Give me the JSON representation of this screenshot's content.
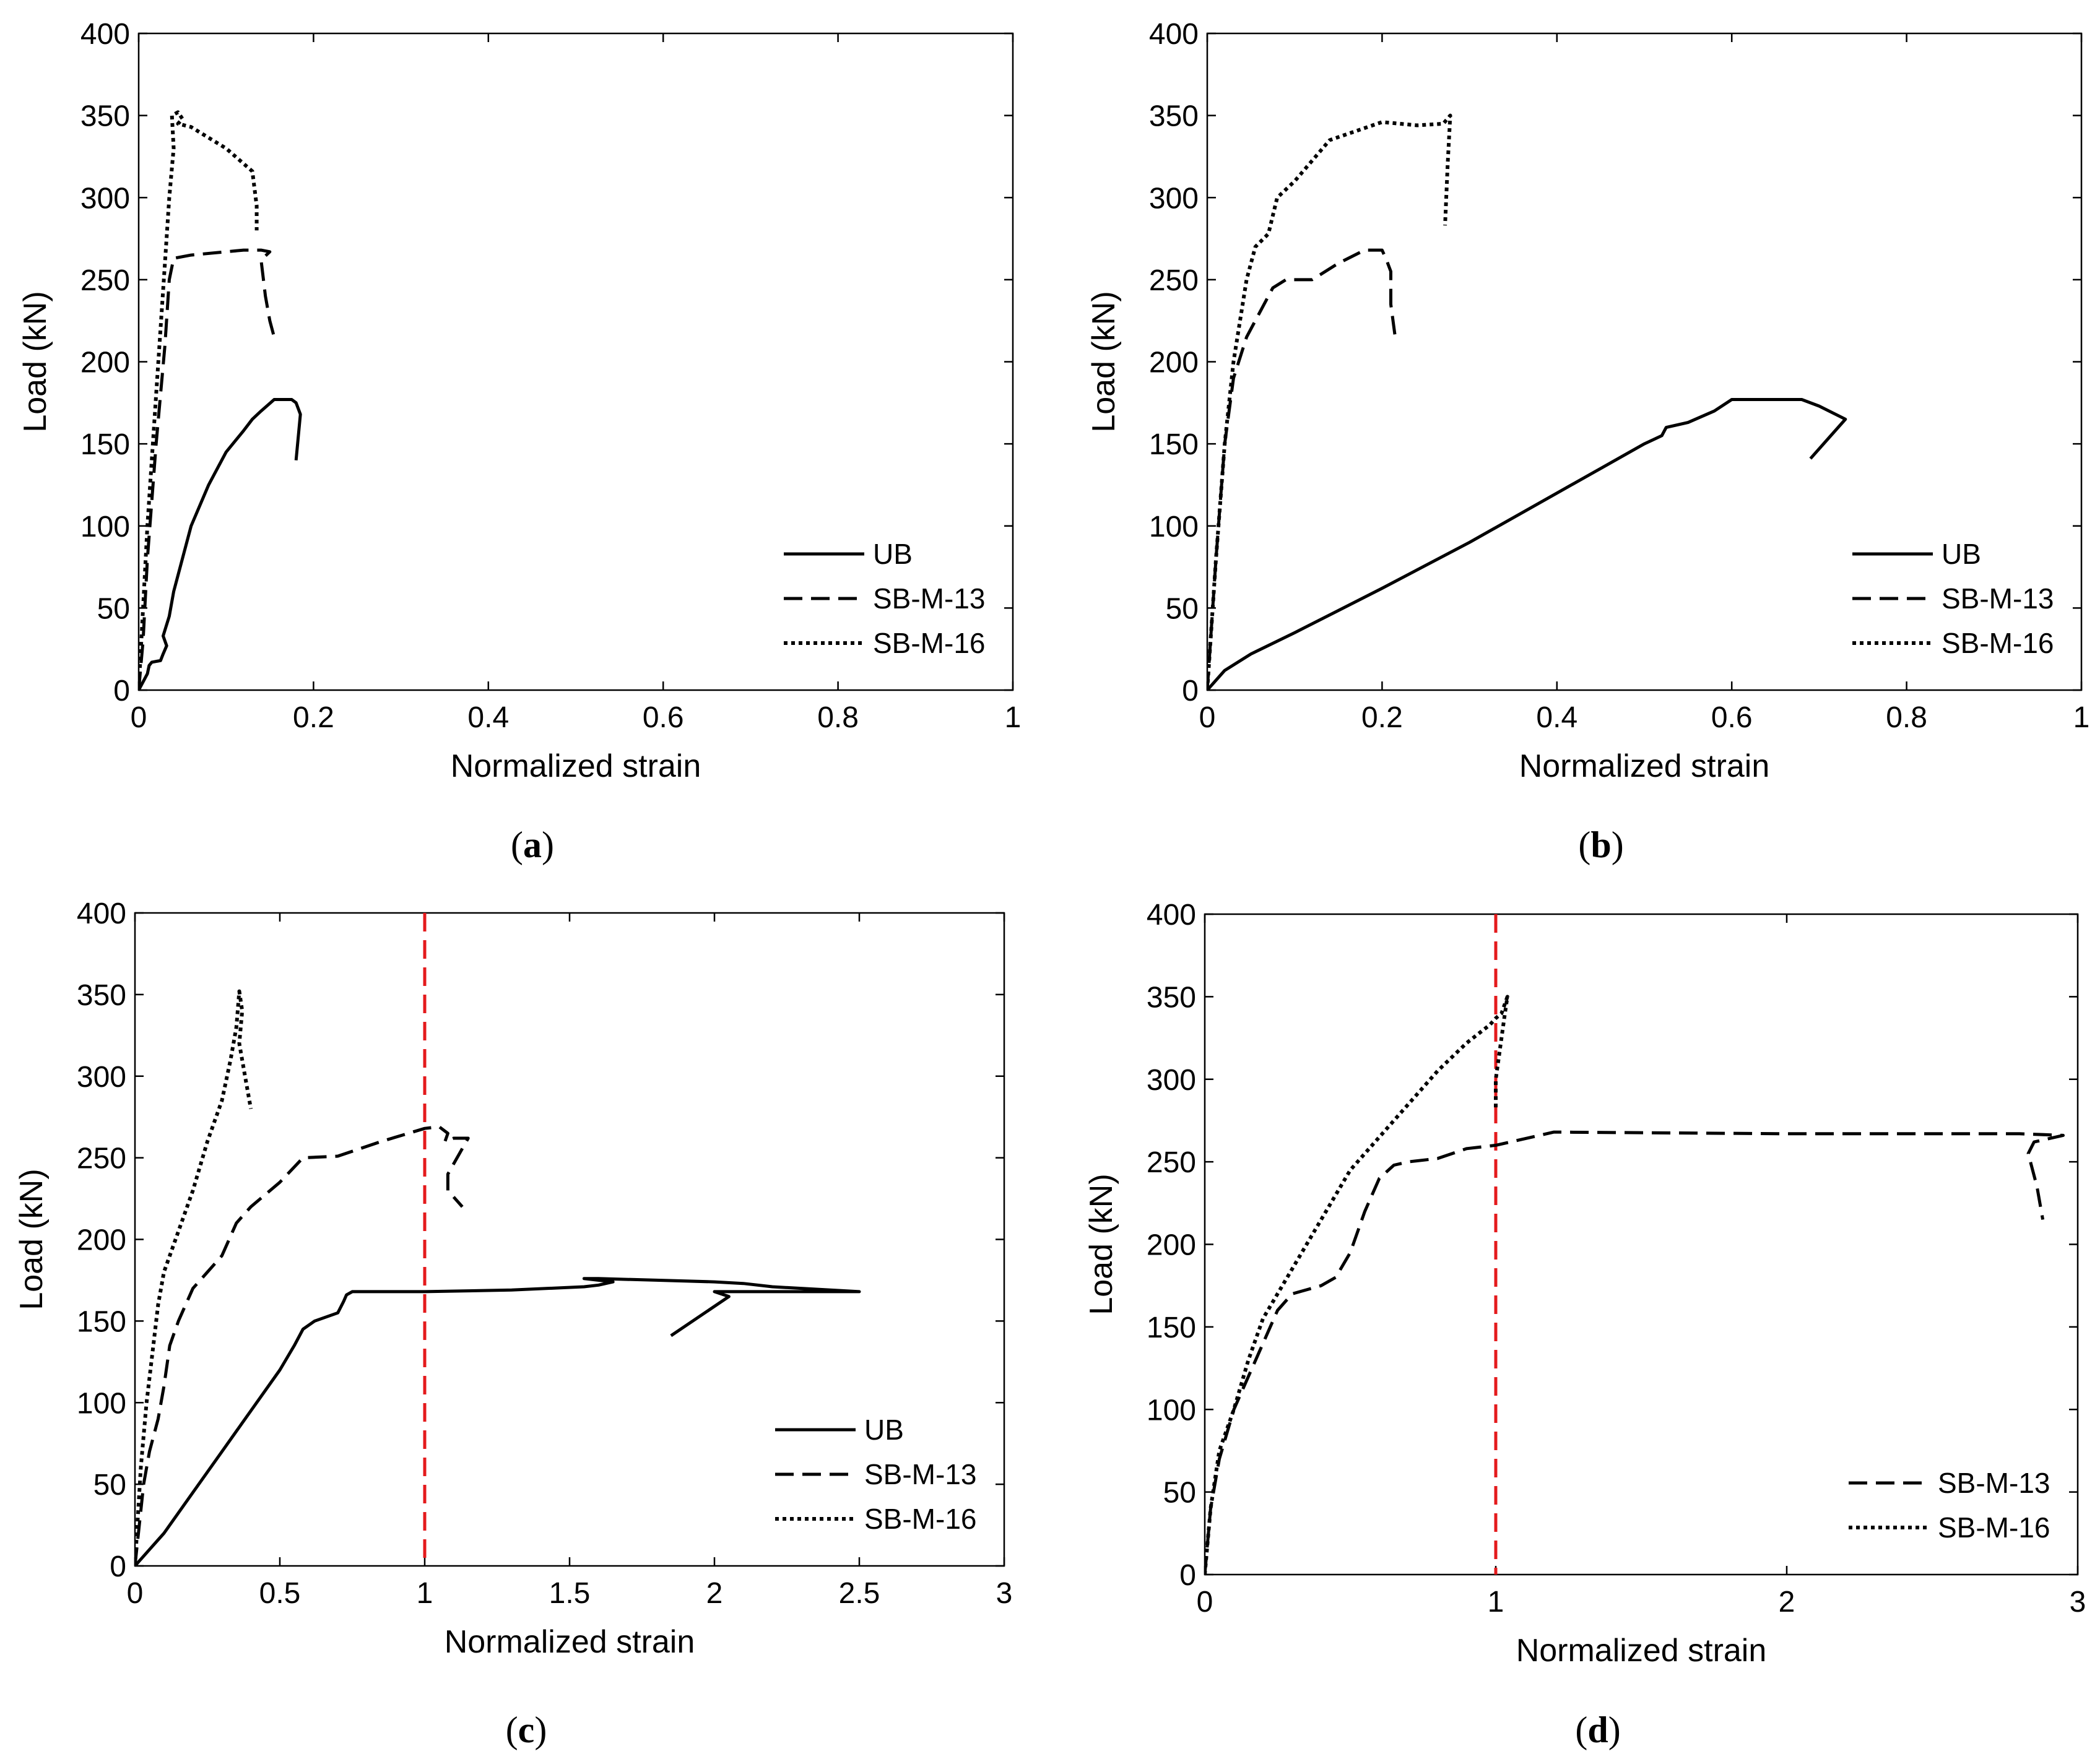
{
  "chart_data": [
    {
      "type": "line",
      "caption_letter": "a",
      "xlabel": "Normalized strain",
      "ylabel": "Load (kN)",
      "xlim": [
        0,
        1
      ],
      "ylim": [
        0,
        400
      ],
      "xticks": [
        0,
        0.2,
        0.4,
        0.6,
        0.8,
        1
      ],
      "xtick_labels": [
        "0",
        "0.2",
        "0.4",
        "0.6",
        "0.8",
        "1"
      ],
      "yticks": [
        0,
        50,
        100,
        150,
        200,
        250,
        300,
        350,
        400
      ],
      "ytick_labels": [
        "0",
        "50",
        "100",
        "150",
        "200",
        "250",
        "300",
        "350",
        "400"
      ],
      "legend_position": "lower-right",
      "reference_line_x": null,
      "series": [
        {
          "name": "UB",
          "style": "solid",
          "x": [
            0,
            0.005,
            0.01,
            0.012,
            0.015,
            0.025,
            0.028,
            0.032,
            0.028,
            0.035,
            0.04,
            0.05,
            0.06,
            0.08,
            0.1,
            0.12,
            0.13,
            0.14,
            0.155,
            0.175,
            0.18,
            0.185,
            0.18
          ],
          "y": [
            0,
            5,
            10,
            15,
            17,
            18,
            22,
            27,
            33,
            45,
            60,
            80,
            100,
            125,
            145,
            158,
            165,
            170,
            177,
            177,
            175,
            168,
            140
          ]
        },
        {
          "name": "SB-M-13",
          "style": "dashed",
          "x": [
            0,
            0.005,
            0.01,
            0.02,
            0.03,
            0.035,
            0.04,
            0.06,
            0.1,
            0.12,
            0.14,
            0.15,
            0.14,
            0.145,
            0.15,
            0.155
          ],
          "y": [
            0,
            30,
            80,
            150,
            210,
            250,
            263,
            265,
            267,
            268,
            268,
            267,
            262,
            240,
            225,
            215
          ]
        },
        {
          "name": "SB-M-16",
          "style": "dotted",
          "x": [
            0,
            0.005,
            0.01,
            0.02,
            0.03,
            0.035,
            0.04,
            0.038,
            0.045,
            0.05,
            0.045,
            0.06,
            0.1,
            0.13,
            0.135,
            0.135
          ],
          "y": [
            0,
            50,
            100,
            180,
            260,
            300,
            330,
            350,
            352,
            348,
            345,
            343,
            330,
            316,
            295,
            280
          ]
        }
      ]
    },
    {
      "type": "line",
      "caption_letter": "b",
      "xlabel": "Normalized strain",
      "ylabel": "Load (kN)",
      "xlim": [
        0,
        1
      ],
      "ylim": [
        0,
        400
      ],
      "xticks": [
        0,
        0.2,
        0.4,
        0.6,
        0.8,
        1
      ],
      "xtick_labels": [
        "0",
        "0.2",
        "0.4",
        "0.6",
        "0.8",
        "1"
      ],
      "yticks": [
        0,
        50,
        100,
        150,
        200,
        250,
        300,
        350,
        400
      ],
      "ytick_labels": [
        "0",
        "50",
        "100",
        "150",
        "200",
        "250",
        "300",
        "350",
        "400"
      ],
      "legend_position": "lower-right",
      "reference_line_x": null,
      "series": [
        {
          "name": "UB",
          "style": "solid",
          "x": [
            0,
            0.02,
            0.05,
            0.1,
            0.2,
            0.3,
            0.4,
            0.45,
            0.5,
            0.52,
            0.525,
            0.55,
            0.58,
            0.6,
            0.68,
            0.7,
            0.73,
            0.71,
            0.69
          ],
          "y": [
            0,
            12,
            22,
            35,
            62,
            90,
            120,
            135,
            150,
            155,
            160,
            163,
            170,
            177,
            177,
            173,
            165,
            153,
            141
          ]
        },
        {
          "name": "SB-M-13",
          "style": "dashed",
          "x": [
            0,
            0.01,
            0.02,
            0.03,
            0.045,
            0.06,
            0.075,
            0.09,
            0.12,
            0.15,
            0.18,
            0.2,
            0.205,
            0.21,
            0.21,
            0.215
          ],
          "y": [
            0,
            80,
            150,
            190,
            215,
            230,
            245,
            250,
            250,
            260,
            268,
            268,
            262,
            255,
            235,
            215
          ]
        },
        {
          "name": "SB-M-16",
          "style": "dotted",
          "x": [
            0,
            0.01,
            0.02,
            0.03,
            0.045,
            0.055,
            0.07,
            0.08,
            0.1,
            0.14,
            0.2,
            0.24,
            0.27,
            0.278,
            0.275,
            0.272
          ],
          "y": [
            0,
            80,
            150,
            200,
            250,
            270,
            278,
            300,
            310,
            335,
            346,
            344,
            345,
            350,
            320,
            283
          ]
        }
      ]
    },
    {
      "type": "line",
      "caption_letter": "c",
      "xlabel": "Normalized strain",
      "ylabel": "Load (kN)",
      "xlim": [
        0,
        3
      ],
      "ylim": [
        0,
        400
      ],
      "xticks": [
        0,
        0.5,
        1,
        1.5,
        2,
        2.5,
        3
      ],
      "xtick_labels": [
        "0",
        "0.5",
        "1",
        "1.5",
        "2",
        "2.5",
        "3"
      ],
      "yticks": [
        0,
        50,
        100,
        150,
        200,
        250,
        300,
        350,
        400
      ],
      "ytick_labels": [
        "0",
        "50",
        "100",
        "150",
        "200",
        "250",
        "300",
        "350",
        "400"
      ],
      "legend_position": "lower-right",
      "reference_line_x": 1,
      "series": [
        {
          "name": "UB",
          "style": "solid",
          "x": [
            0,
            0.05,
            0.1,
            0.2,
            0.3,
            0.4,
            0.5,
            0.55,
            0.58,
            0.62,
            0.7,
            0.72,
            0.73,
            0.75,
            0.8,
            1.0,
            1.3,
            1.55,
            1.6,
            1.65,
            1.55,
            1.6,
            1.8,
            2.0,
            2.1,
            2.2,
            2.5,
            2.2,
            2.0,
            2.05,
            1.85
          ],
          "y": [
            0,
            10,
            20,
            45,
            70,
            95,
            120,
            135,
            145,
            150,
            155,
            162,
            166,
            168,
            168,
            168,
            169,
            171,
            172,
            174,
            176,
            176,
            175,
            174,
            173,
            171,
            168,
            168,
            168,
            165,
            141
          ]
        },
        {
          "name": "SB-M-13",
          "style": "dashed",
          "x": [
            0,
            0.03,
            0.05,
            0.08,
            0.1,
            0.12,
            0.15,
            0.2,
            0.25,
            0.3,
            0.35,
            0.4,
            0.5,
            0.58,
            0.7,
            0.85,
            1.0,
            1.05,
            1.08,
            1.07,
            1.1,
            1.15,
            1.08,
            1.08,
            1.13
          ],
          "y": [
            0,
            50,
            70,
            90,
            110,
            135,
            150,
            170,
            180,
            190,
            210,
            220,
            235,
            250,
            251,
            260,
            268,
            269,
            265,
            260,
            262,
            262,
            240,
            230,
            220
          ]
        },
        {
          "name": "SB-M-16",
          "style": "dotted",
          "x": [
            0,
            0.02,
            0.04,
            0.06,
            0.08,
            0.1,
            0.15,
            0.2,
            0.25,
            0.3,
            0.33,
            0.35,
            0.36,
            0.37,
            0.36,
            0.38,
            0.4
          ],
          "y": [
            0,
            60,
            100,
            130,
            160,
            180,
            205,
            230,
            260,
            285,
            310,
            330,
            352,
            340,
            320,
            300,
            280
          ]
        }
      ]
    },
    {
      "type": "line",
      "caption_letter": "d",
      "xlabel": "Normalized strain",
      "ylabel": "Load (kN)",
      "xlim": [
        0,
        3
      ],
      "ylim": [
        0,
        400
      ],
      "xticks": [
        0,
        1,
        2,
        3
      ],
      "xtick_labels": [
        "0",
        "1",
        "2",
        "3"
      ],
      "yticks": [
        0,
        50,
        100,
        150,
        200,
        250,
        300,
        350,
        400
      ],
      "ytick_labels": [
        "0",
        "50",
        "100",
        "150",
        "200",
        "250",
        "300",
        "350",
        "400"
      ],
      "legend_position": "lower-right",
      "reference_line_x": 1,
      "series": [
        {
          "name": "SB-M-13",
          "style": "dashed",
          "x": [
            0,
            0.02,
            0.05,
            0.1,
            0.15,
            0.2,
            0.25,
            0.3,
            0.4,
            0.45,
            0.5,
            0.55,
            0.6,
            0.65,
            0.7,
            0.8,
            0.9,
            1.0,
            1.2,
            2.0,
            2.8,
            2.95,
            2.85,
            2.83,
            2.86,
            2.88
          ],
          "y": [
            0,
            40,
            70,
            100,
            120,
            140,
            160,
            170,
            175,
            180,
            195,
            220,
            240,
            248,
            250,
            252,
            258,
            260,
            268,
            267,
            267,
            266,
            262,
            255,
            235,
            215
          ]
        },
        {
          "name": "SB-M-16",
          "style": "dotted",
          "x": [
            0,
            0.02,
            0.05,
            0.1,
            0.15,
            0.2,
            0.3,
            0.4,
            0.5,
            0.6,
            0.7,
            0.8,
            0.9,
            0.98,
            1.0,
            1.02,
            1.04,
            1.03,
            1.0,
            1.0
          ],
          "y": [
            0,
            40,
            75,
            100,
            130,
            155,
            185,
            215,
            245,
            265,
            285,
            305,
            322,
            333,
            337,
            340,
            350,
            338,
            300,
            282
          ]
        }
      ]
    }
  ]
}
